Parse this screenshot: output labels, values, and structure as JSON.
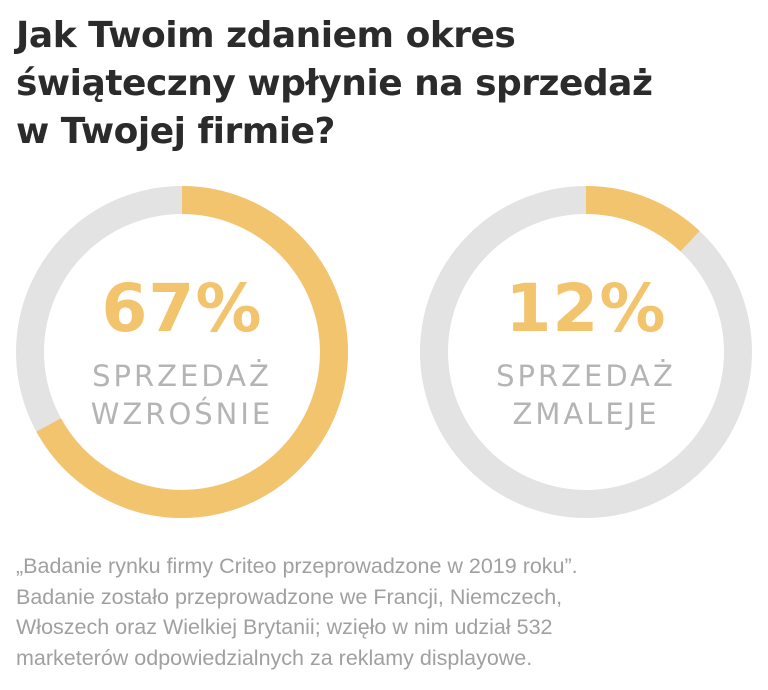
{
  "title": {
    "lines": [
      "Jak Twoim zdaniem okres",
      "świąteczny wpłynie na sprzedaż",
      "w Twojej firmie?"
    ]
  },
  "chart_data": [
    {
      "type": "pie",
      "variant": "donut",
      "value_percent": 67,
      "value_label": "67%",
      "label_lines": [
        "SPRZEDAŻ",
        "WZROŚNIE"
      ],
      "filled_color": "#f2c46e",
      "track_color": "#e3e3e3"
    },
    {
      "type": "pie",
      "variant": "donut",
      "value_percent": 12,
      "value_label": "12%",
      "label_lines": [
        "SPRZEDAŻ",
        "ZMALEJE"
      ],
      "filled_color": "#f2c46e",
      "track_color": "#e3e3e3"
    }
  ],
  "note": {
    "lines": [
      "„Badanie rynku firmy Criteo przeprowadzone w 2019 roku”.",
      "Badanie zostało przeprowadzone we Francji, Niemczech,",
      "Włoszech oraz Wielkiej Brytanii; wzięło w nim udział 532",
      "marketerów odpowiedzialnych za reklamy displayowe."
    ]
  }
}
